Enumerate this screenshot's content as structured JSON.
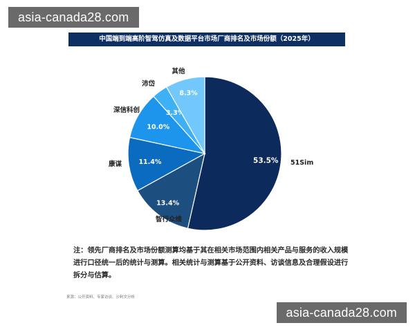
{
  "watermark_top": "asia-canada28.com",
  "watermark_bottom": "asia-canada28.com",
  "note": "注：领先厂商排名及市场份额测算均基于其在相关市场范围内相关产品与服务的收入规模进行口径统一后的统计与测算。相关统计与测算基于公开资料、访谈信息及合理假设进行拆分与估算。",
  "source": "来源：公开资料、专家访谈、沙利文分析",
  "chart_data": {
    "type": "pie",
    "title": "中国端到端高阶智驾仿真及数据平台市场厂商排名及市场份额（2025年）",
    "slices": [
      {
        "label": "51Sim",
        "value": 53.5,
        "value_label": "53.5%",
        "color": "#0c2a5c",
        "text_color": "#ffffff"
      },
      {
        "label": "智行众维",
        "value": 13.4,
        "value_label": "13.4%",
        "color": "#1d4e80",
        "text_color": "#ffffff"
      },
      {
        "label": "康谋",
        "value": 11.4,
        "value_label": "11.4%",
        "color": "#0a6bbf",
        "text_color": "#ffffff"
      },
      {
        "label": "深信科创",
        "value": 10.0,
        "value_label": "10.0%",
        "color": "#1e95ec",
        "text_color": "#ffffff"
      },
      {
        "label": "沛岱",
        "value": 3.3,
        "value_label": "3.3%",
        "color": "#3db0f6",
        "text_color": "#ffffff"
      },
      {
        "label": "其他",
        "value": 8.3,
        "value_label": "8.3%",
        "color": "#72c8fb",
        "text_color": "#ffffff"
      }
    ]
  }
}
